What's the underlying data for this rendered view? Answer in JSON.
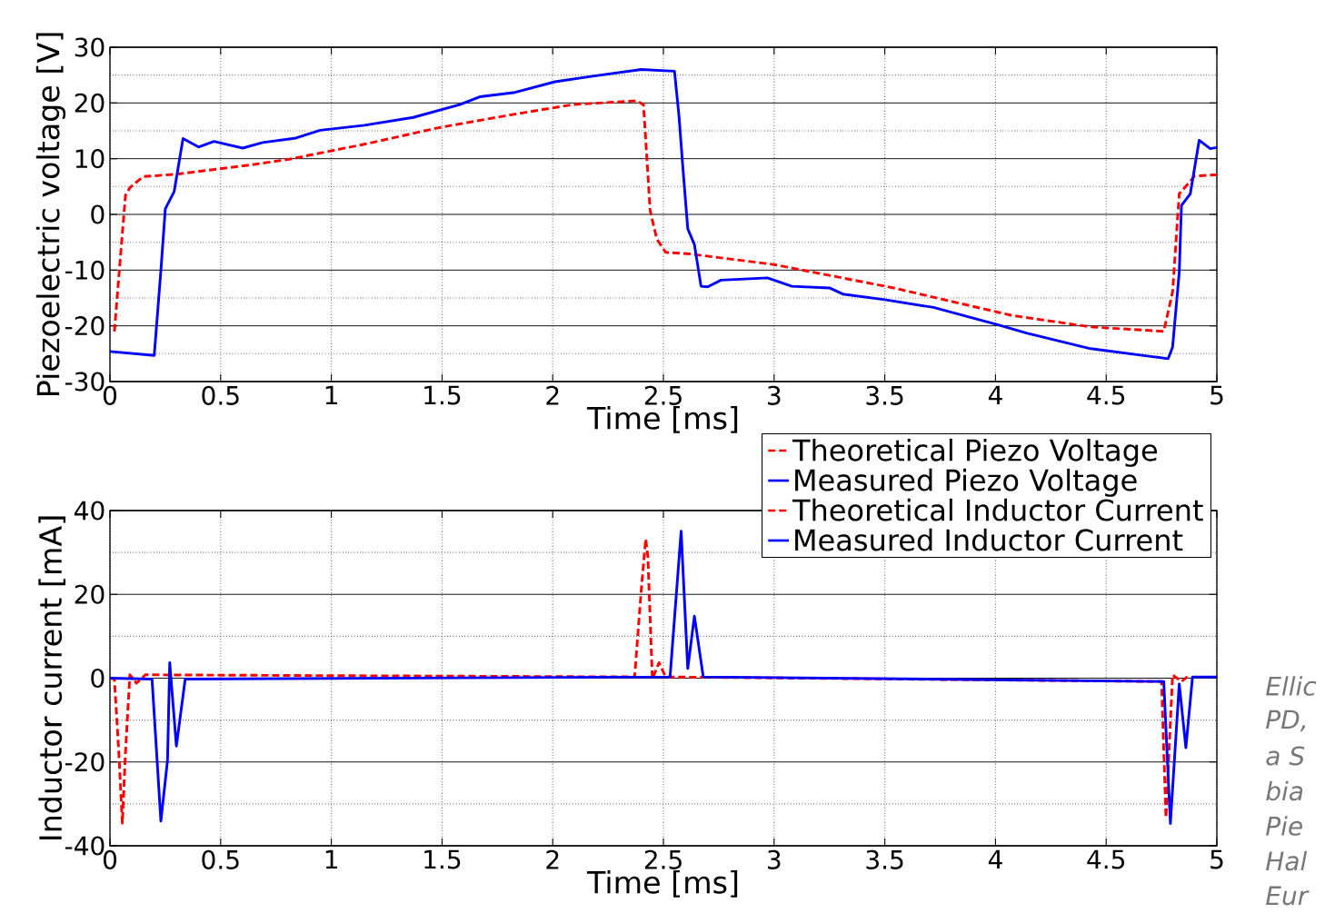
{
  "chart_data": [
    {
      "type": "line",
      "xlabel": "Time [ms]",
      "ylabel": "Piezoelectric voltage [V]",
      "xlim": [
        0,
        5
      ],
      "ylim": [
        -30,
        30
      ],
      "xticks": [
        0,
        0.5,
        1,
        1.5,
        2,
        2.5,
        3,
        3.5,
        4,
        4.5,
        5
      ],
      "yticks": [
        -30,
        -20,
        -10,
        0,
        10,
        20,
        30
      ],
      "grid": true,
      "legend": "bottom right",
      "series": [
        {
          "name": "Theoretical Piezo Voltage",
          "color": "#ff0000",
          "line_style": "dashed",
          "x": [
            0.02,
            0.07,
            0.09,
            0.15,
            0.3,
            0.64,
            0.81,
            1.15,
            1.49,
            1.83,
            2.09,
            2.38,
            2.41,
            2.44,
            2.47,
            2.51,
            2.62,
            3.0,
            3.54,
            4.07,
            4.43,
            4.76,
            4.8,
            4.83,
            4.87,
            4.9,
            5.0
          ],
          "values": [
            -21.0,
            3.4,
            4.8,
            6.8,
            7.2,
            8.9,
            9.9,
            12.6,
            15.6,
            18.0,
            19.7,
            20.4,
            19.7,
            0.7,
            -4.4,
            -6.8,
            -7.1,
            -9.0,
            -13.2,
            -18.1,
            -20.2,
            -21.0,
            -13.9,
            3.7,
            5.5,
            6.9,
            7.1
          ]
        },
        {
          "name": "Measured Piezo Voltage",
          "color": "#0000ff",
          "line_style": "solid",
          "x": [
            0,
            0.2,
            0.23,
            0.25,
            0.29,
            0.33,
            0.4,
            0.47,
            0.6,
            0.69,
            0.84,
            0.95,
            1.15,
            1.37,
            1.58,
            1.67,
            1.83,
            2.01,
            2.18,
            2.4,
            2.55,
            2.57,
            2.59,
            2.61,
            2.64,
            2.67,
            2.7,
            2.76,
            2.97,
            3.08,
            3.25,
            3.31,
            3.5,
            3.72,
            4.02,
            4.14,
            4.43,
            4.78,
            4.8,
            4.83,
            4.84,
            4.88,
            4.92,
            4.97,
            5.0
          ],
          "values": [
            -24.6,
            -25.3,
            -10.1,
            1.0,
            4.1,
            13.6,
            12.1,
            13.1,
            11.9,
            12.9,
            13.7,
            15.1,
            16.0,
            17.4,
            19.7,
            21.1,
            21.9,
            23.8,
            24.8,
            26.0,
            25.7,
            17.8,
            7.3,
            -2.6,
            -5.4,
            -12.9,
            -13.0,
            -11.8,
            -11.4,
            -12.9,
            -13.2,
            -14.3,
            -15.3,
            -16.7,
            -19.9,
            -21.3,
            -24.1,
            -25.9,
            -23.8,
            -10.4,
            1.6,
            3.7,
            13.3,
            11.8,
            12.0
          ]
        }
      ]
    },
    {
      "type": "line",
      "xlabel": "Time [ms]",
      "ylabel": "Inductor current [mA]",
      "xlim": [
        0,
        5
      ],
      "ylim": [
        -40,
        40
      ],
      "xticks": [
        0,
        0.5,
        1,
        1.5,
        2,
        2.5,
        3,
        3.5,
        4,
        4.5,
        5
      ],
      "yticks": [
        -40,
        -20,
        0,
        20,
        40
      ],
      "grid": true,
      "legend": "top right",
      "annotations": [
        "Ellic",
        "PD,",
        "a S",
        "bia",
        "Pie",
        "Hal",
        "Eur"
      ],
      "series": [
        {
          "name": "Theoretical Inductor Current",
          "color": "#ff0000",
          "line_style": "dashed",
          "x": [
            0,
            0.02,
            0.04,
            0.056,
            0.07,
            0.09,
            0.12,
            0.16,
            2.37,
            2.4,
            2.42,
            2.43,
            2.45,
            2.48,
            2.51,
            4.75,
            4.77,
            4.8,
            4.84,
            4.87
          ],
          "values": [
            0,
            -0.2,
            -17.7,
            -34.6,
            -17.7,
            0.8,
            -1.2,
            0.8,
            0.3,
            21.1,
            33.2,
            28.8,
            -0.2,
            3.7,
            0.3,
            -0.8,
            -33.3,
            0.8,
            -0.8,
            0.5
          ]
        },
        {
          "name": "Measured Inductor Current",
          "color": "#0000ff",
          "line_style": "solid",
          "x": [
            0,
            0.19,
            0.23,
            0.26,
            0.27,
            0.3,
            0.34,
            2.53,
            2.58,
            2.61,
            2.64,
            2.68,
            4.76,
            4.79,
            4.83,
            4.86,
            4.89,
            5.0
          ],
          "values": [
            0,
            -0.2,
            -34.1,
            -19.6,
            3.7,
            -16.2,
            -0.2,
            0.3,
            35.1,
            2.3,
            14.8,
            0.3,
            -0.8,
            -34.7,
            -1.4,
            -16.6,
            0.3,
            0.3
          ]
        }
      ]
    }
  ]
}
